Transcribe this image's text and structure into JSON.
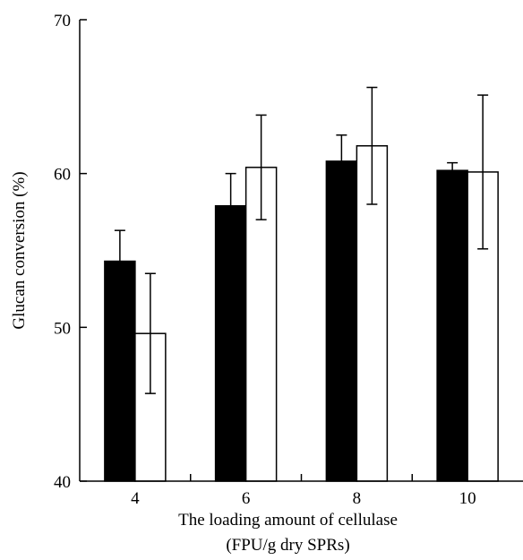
{
  "chart_data": {
    "type": "bar",
    "xlabel": [
      "The loading amount of cellulase",
      "(FPU/g dry SPRs)"
    ],
    "ylabel": "Glucan conversion (%)",
    "ylim": [
      40,
      70
    ],
    "yticks": [
      40,
      50,
      60,
      70
    ],
    "categories": [
      "4",
      "6",
      "8",
      "10"
    ],
    "series": [
      {
        "color": "#000000",
        "values": [
          54.3,
          57.9,
          60.8,
          60.2
        ],
        "errors": [
          2.0,
          2.1,
          1.7,
          0.5
        ]
      },
      {
        "color": "#ffffff",
        "values": [
          49.6,
          60.4,
          61.8,
          60.1
        ],
        "errors": [
          3.9,
          3.4,
          3.8,
          5.0
        ]
      }
    ],
    "grid": false,
    "legend": "none"
  }
}
